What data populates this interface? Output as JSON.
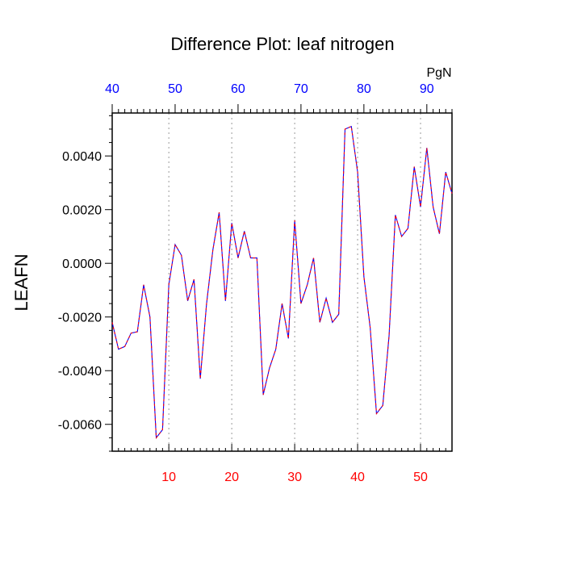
{
  "chart_data": {
    "type": "line",
    "title": "Difference Plot: leaf nitrogen",
    "ylabel": "LEAFN",
    "xlabel": "",
    "xlim": [
      1,
      55
    ],
    "ylim": [
      -0.007,
      0.0056
    ],
    "x_ticks": [
      "10",
      "20",
      "30",
      "40",
      "50"
    ],
    "x_tick_values": [
      10,
      20,
      30,
      40,
      50
    ],
    "y_ticks": [
      "0.0040",
      "0.0020",
      "0.0000",
      "-0.0020",
      "-0.0040",
      "-0.0060"
    ],
    "y_tick_values": [
      0.004,
      0.002,
      0.0,
      -0.002,
      -0.004,
      -0.006
    ],
    "top_axis": {
      "unit": "PgN",
      "ticks": [
        "40",
        "50",
        "60",
        "70",
        "80",
        "90"
      ],
      "tick_values": [
        40,
        50,
        60,
        70,
        80,
        90
      ],
      "range": [
        40,
        94
      ],
      "color": "#0000ff"
    },
    "bottom_axis_color": "#ff0000",
    "grid": "vertical dashed at x ticks",
    "series": [
      {
        "line_color": "#0000ff",
        "overlay_color": "#ff0000",
        "x": [
          1,
          2,
          3,
          4,
          5,
          6,
          7,
          8,
          9,
          10,
          11,
          12,
          13,
          14,
          15,
          16,
          17,
          18,
          19,
          20,
          21,
          22,
          23,
          24,
          25,
          26,
          27,
          28,
          29,
          30,
          31,
          32,
          33,
          34,
          35,
          36,
          37,
          38,
          39,
          40,
          41,
          42,
          43,
          44,
          45,
          46,
          47,
          48,
          49,
          50,
          51,
          52,
          53,
          54,
          55
        ],
        "values": [
          -0.0022,
          -0.0032,
          -0.0031,
          -0.0026,
          -0.00255,
          -0.0008,
          -0.002,
          -0.0065,
          -0.0062,
          -0.0008,
          0.0007,
          0.0003,
          -0.0014,
          -0.0006,
          -0.0043,
          -0.0015,
          0.0005,
          0.0019,
          -0.0014,
          0.0015,
          0.0002,
          0.0012,
          0.0002,
          0.0002,
          -0.0049,
          -0.0039,
          -0.0032,
          -0.0015,
          -0.0028,
          0.0016,
          -0.0015,
          -0.0008,
          0.0002,
          -0.0022,
          -0.0013,
          -0.0022,
          -0.0019,
          0.005,
          0.0051,
          0.0034,
          -0.0005,
          -0.0024,
          -0.0056,
          -0.0053,
          -0.0027,
          0.0018,
          0.001,
          0.0013,
          0.0036,
          0.0021,
          0.0043,
          0.0021,
          0.0011,
          0.0034,
          0.0026
        ]
      }
    ]
  }
}
